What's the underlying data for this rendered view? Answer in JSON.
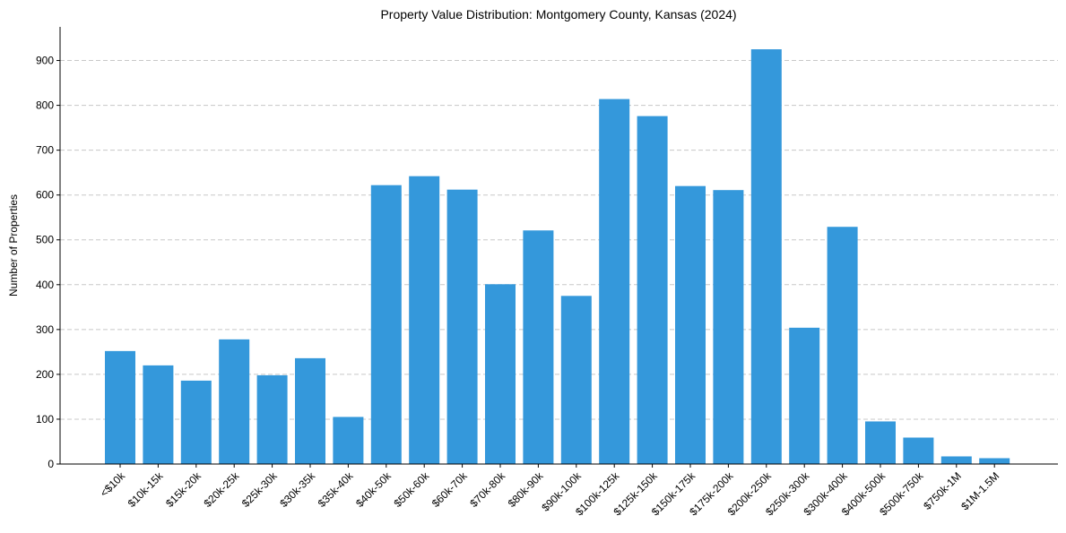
{
  "chart_data": {
    "type": "bar",
    "title": "Property Value Distribution: Montgomery County, Kansas (2024)",
    "xlabel": "",
    "ylabel": "Number of Properties",
    "ylim": [
      0,
      975
    ],
    "yticks": [
      0,
      100,
      200,
      300,
      400,
      500,
      600,
      700,
      800,
      900
    ],
    "grid": "y-dashed",
    "bar_color": "#3498db",
    "categories": [
      "<$10k",
      "$10k-15k",
      "$15k-20k",
      "$20k-25k",
      "$25k-30k",
      "$30k-35k",
      "$35k-40k",
      "$40k-50k",
      "$50k-60k",
      "$60k-70k",
      "$70k-80k",
      "$80k-90k",
      "$90k-100k",
      "$100k-125k",
      "$125k-150k",
      "$150k-175k",
      "$175k-200k",
      "$200k-250k",
      "$250k-300k",
      "$300k-400k",
      "$400k-500k",
      "$500k-750k",
      "$750k-1M",
      "$1M-1.5M"
    ],
    "values": [
      252,
      220,
      186,
      278,
      198,
      236,
      105,
      622,
      642,
      612,
      401,
      521,
      375,
      814,
      776,
      620,
      611,
      925,
      304,
      529,
      95,
      59,
      17,
      13
    ]
  }
}
